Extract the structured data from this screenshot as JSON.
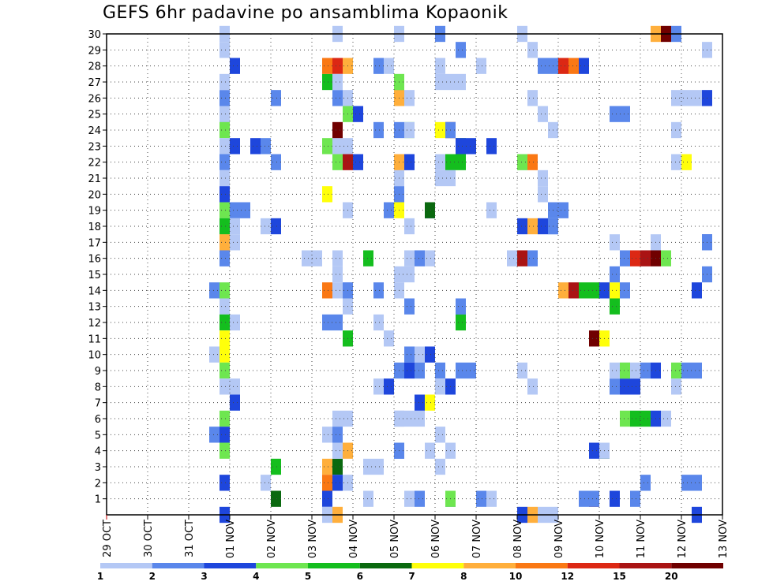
{
  "chart_data": {
    "type": "heatmap",
    "title": "GEFS 6hr padavine po ansamblima Kopaonik",
    "x_ticks": [
      "29 OCT",
      "30 OCT",
      "31 OCT",
      "01 NOV",
      "02 NOV",
      "03 NOV",
      "04 NOV",
      "05 NOV",
      "06 NOV",
      "07 NOV",
      "08 NOV",
      "09 NOV",
      "10 NOV",
      "11 NOV",
      "12 NOV",
      "13 NOV"
    ],
    "y_ticks": [
      "1",
      "2",
      "3",
      "4",
      "5",
      "6",
      "7",
      "8",
      "9",
      "10",
      "11",
      "12",
      "13",
      "14",
      "15",
      "16",
      "17",
      "18",
      "19",
      "20",
      "21",
      "22",
      "23",
      "24",
      "25",
      "26",
      "27",
      "28",
      "29",
      "30"
    ],
    "ylim": [
      0,
      30
    ],
    "grid": true,
    "colorbar": {
      "labels": [
        "1",
        "2",
        "3",
        "4",
        "5",
        "6",
        "7",
        "8",
        "10",
        "12",
        "15",
        "20"
      ],
      "colors": [
        "#b4c8f5",
        "#5a87eb",
        "#1e46dc",
        "#6ee650",
        "#14be1e",
        "#0a690f",
        "#ffff0a",
        "#ffaf3c",
        "#fa7814",
        "#dc2814",
        "#aa1414",
        "#700000"
      ]
    },
    "cells": [
      [
        11,
        1,
        30
      ],
      [
        11,
        1,
        29
      ],
      [
        11,
        2,
        26
      ],
      [
        11,
        2,
        25
      ],
      [
        11,
        1,
        25
      ],
      [
        11,
        1,
        27
      ],
      [
        11,
        4,
        24
      ],
      [
        11,
        1,
        23
      ],
      [
        11,
        2,
        22
      ],
      [
        11,
        1,
        21
      ],
      [
        11,
        3,
        20
      ],
      [
        11,
        1,
        19
      ],
      [
        11,
        4,
        19
      ],
      [
        11,
        5,
        18
      ],
      [
        11,
        5,
        17
      ],
      [
        11,
        8,
        17
      ],
      [
        11,
        1,
        16
      ],
      [
        11,
        2,
        16
      ],
      [
        11,
        4,
        14
      ],
      [
        11,
        1,
        13
      ],
      [
        11,
        1,
        12
      ],
      [
        11,
        5,
        12
      ],
      [
        11,
        1,
        11
      ],
      [
        11,
        7,
        11
      ],
      [
        11,
        7,
        10
      ],
      [
        11,
        4,
        9
      ],
      [
        11,
        1,
        8
      ],
      [
        11,
        4,
        6
      ],
      [
        11,
        3,
        5
      ],
      [
        11,
        4,
        4
      ],
      [
        11,
        3,
        2
      ],
      [
        11,
        3,
        0
      ],
      [
        10,
        2,
        14
      ],
      [
        10,
        1,
        10
      ],
      [
        10,
        2,
        5
      ],
      [
        12,
        3,
        28
      ],
      [
        12,
        3,
        23
      ],
      [
        12,
        2,
        19
      ],
      [
        12,
        1,
        18
      ],
      [
        12,
        1,
        17
      ],
      [
        12,
        1,
        12
      ],
      [
        12,
        1,
        8
      ],
      [
        12,
        3,
        7
      ],
      [
        13,
        2,
        19
      ],
      [
        14,
        3,
        23
      ],
      [
        15,
        2,
        23
      ],
      [
        15,
        1,
        18
      ],
      [
        16,
        3,
        18
      ],
      [
        16,
        2,
        22
      ],
      [
        16,
        2,
        26
      ],
      [
        16,
        5,
        3
      ],
      [
        16,
        6,
        1
      ],
      [
        15,
        1,
        2
      ],
      [
        19,
        1,
        16
      ],
      [
        20,
        1,
        16
      ],
      [
        21,
        3,
        1
      ],
      [
        21,
        8,
        3
      ],
      [
        21,
        9,
        2
      ],
      [
        22,
        6,
        3
      ],
      [
        22,
        3,
        2
      ],
      [
        22,
        8,
        0
      ],
      [
        21,
        1,
        0
      ],
      [
        21,
        5,
        27
      ],
      [
        21,
        9,
        28
      ],
      [
        22,
        10,
        28
      ],
      [
        23,
        8,
        28
      ],
      [
        22,
        4,
        22
      ],
      [
        23,
        11,
        22
      ],
      [
        24,
        3,
        22
      ],
      [
        23,
        4,
        25
      ],
      [
        24,
        3,
        25
      ],
      [
        22,
        2,
        26
      ],
      [
        23,
        1,
        26
      ],
      [
        21,
        4,
        23
      ],
      [
        22,
        1,
        23
      ],
      [
        23,
        1,
        23
      ],
      [
        22,
        12,
        24
      ],
      [
        22,
        1,
        27
      ],
      [
        22,
        1,
        16
      ],
      [
        22,
        1,
        15
      ],
      [
        21,
        9,
        14
      ],
      [
        22,
        1,
        14
      ],
      [
        23,
        1,
        14
      ],
      [
        23,
        2,
        14
      ],
      [
        23,
        1,
        13
      ],
      [
        22,
        2,
        12
      ],
      [
        21,
        2,
        12
      ],
      [
        23,
        5,
        11
      ],
      [
        22,
        1,
        6
      ],
      [
        23,
        1,
        6
      ],
      [
        21,
        7,
        20
      ],
      [
        23,
        1,
        19
      ],
      [
        21,
        1,
        5
      ],
      [
        22,
        2,
        5
      ],
      [
        22,
        1,
        4
      ],
      [
        23,
        8,
        4
      ],
      [
        23,
        1,
        2
      ],
      [
        22,
        1,
        30
      ],
      [
        25,
        1,
        3
      ],
      [
        26,
        1,
        3
      ],
      [
        25,
        1,
        1
      ],
      [
        25,
        5,
        16
      ],
      [
        26,
        2,
        24
      ],
      [
        26,
        2,
        14
      ],
      [
        26,
        1,
        12
      ],
      [
        26,
        2,
        28
      ],
      [
        27,
        1,
        28
      ],
      [
        27,
        2,
        19
      ],
      [
        26,
        1,
        8
      ],
      [
        27,
        3,
        8
      ],
      [
        27,
        1,
        11
      ],
      [
        28,
        1,
        6
      ],
      [
        28,
        2,
        4
      ],
      [
        28,
        2,
        4
      ],
      [
        28,
        1,
        4
      ],
      [
        28,
        2,
        24
      ],
      [
        28,
        1,
        22
      ],
      [
        29,
        1,
        22
      ],
      [
        29,
        1,
        16
      ],
      [
        29,
        1,
        15
      ],
      [
        28,
        1,
        15
      ],
      [
        28,
        1,
        14
      ],
      [
        28,
        1,
        21
      ],
      [
        28,
        2,
        20
      ],
      [
        28,
        1,
        30
      ],
      [
        28,
        7,
        19
      ],
      [
        28,
        5,
        26
      ],
      [
        28,
        8,
        26
      ],
      [
        29,
        1,
        26
      ],
      [
        28,
        4,
        27
      ],
      [
        28,
        8,
        22
      ],
      [
        29,
        3,
        22
      ],
      [
        29,
        1,
        18
      ],
      [
        29,
        4,
        24
      ],
      [
        29,
        1,
        24
      ],
      [
        29,
        1,
        1
      ],
      [
        29,
        2,
        13
      ],
      [
        29,
        2,
        10
      ],
      [
        30,
        1,
        10
      ],
      [
        29,
        3,
        9
      ],
      [
        30,
        2,
        9
      ],
      [
        30,
        2,
        1
      ],
      [
        31,
        3,
        19
      ],
      [
        31,
        6,
        19
      ],
      [
        30,
        2,
        16
      ],
      [
        31,
        1,
        16
      ],
      [
        30,
        1,
        6
      ],
      [
        29,
        1,
        6
      ],
      [
        28,
        1,
        6
      ],
      [
        28,
        2,
        9
      ],
      [
        28,
        2,
        4
      ],
      [
        30,
        3,
        7
      ],
      [
        31,
        7,
        7
      ],
      [
        31,
        1,
        4
      ],
      [
        31,
        3,
        10
      ],
      [
        32,
        2,
        9
      ],
      [
        32,
        1,
        28
      ],
      [
        32,
        1,
        27
      ],
      [
        32,
        2,
        30
      ],
      [
        32,
        1,
        21
      ],
      [
        32,
        1,
        3
      ],
      [
        32,
        1,
        8
      ],
      [
        32,
        1,
        5
      ],
      [
        33,
        3,
        8
      ],
      [
        33,
        2,
        22
      ],
      [
        32,
        1,
        22
      ],
      [
        33,
        5,
        22
      ],
      [
        33,
        1,
        4
      ],
      [
        32,
        7,
        24
      ],
      [
        33,
        12,
        24
      ],
      [
        33,
        2,
        24
      ],
      [
        33,
        2,
        1
      ],
      [
        33,
        4,
        1
      ],
      [
        34,
        5,
        23
      ],
      [
        34,
        5,
        22
      ],
      [
        34,
        3,
        23
      ],
      [
        34,
        3,
        13
      ],
      [
        34,
        5,
        12
      ],
      [
        33,
        1,
        27
      ],
      [
        34,
        1,
        27
      ],
      [
        33,
        1,
        21
      ],
      [
        34,
        2,
        13
      ],
      [
        35,
        3,
        23
      ],
      [
        34,
        2,
        29
      ],
      [
        34,
        2,
        9
      ],
      [
        35,
        2,
        9
      ],
      [
        36,
        2,
        1
      ],
      [
        37,
        1,
        1
      ],
      [
        37,
        3,
        23
      ],
      [
        37,
        1,
        19
      ],
      [
        36,
        1,
        28
      ],
      [
        40,
        1,
        22
      ],
      [
        40,
        1,
        9
      ],
      [
        40,
        4,
        22
      ],
      [
        41,
        9,
        22
      ],
      [
        39,
        1,
        16
      ],
      [
        40,
        11,
        16
      ],
      [
        41,
        2,
        16
      ],
      [
        40,
        3,
        18
      ],
      [
        41,
        8,
        18
      ],
      [
        42,
        3,
        18
      ],
      [
        43,
        2,
        18
      ],
      [
        40,
        3,
        0
      ],
      [
        41,
        8,
        0
      ],
      [
        42,
        1,
        0
      ],
      [
        41,
        1,
        8
      ],
      [
        41,
        1,
        29
      ],
      [
        40,
        1,
        30
      ],
      [
        42,
        1,
        21
      ],
      [
        42,
        1,
        20
      ],
      [
        42,
        1,
        25
      ],
      [
        41,
        1,
        26
      ],
      [
        43,
        2,
        18
      ],
      [
        43,
        2,
        19
      ],
      [
        44,
        2,
        19
      ],
      [
        43,
        1,
        24
      ],
      [
        43,
        1,
        0
      ],
      [
        42,
        2,
        28
      ],
      [
        43,
        2,
        28
      ],
      [
        44,
        8,
        14
      ],
      [
        45,
        11,
        14
      ],
      [
        46,
        5,
        14
      ],
      [
        47,
        5,
        14
      ],
      [
        48,
        3,
        14
      ],
      [
        49,
        7,
        14
      ],
      [
        50,
        2,
        14
      ],
      [
        49,
        2,
        15
      ],
      [
        44,
        10,
        28
      ],
      [
        45,
        9,
        28
      ],
      [
        46,
        3,
        28
      ],
      [
        47,
        11,
        1
      ],
      [
        46,
        2,
        1
      ],
      [
        47,
        2,
        1
      ],
      [
        47,
        12,
        11
      ],
      [
        48,
        7,
        11
      ],
      [
        47,
        3,
        4
      ],
      [
        48,
        6,
        4
      ],
      [
        48,
        1,
        4
      ],
      [
        49,
        5,
        13
      ],
      [
        49,
        3,
        1
      ],
      [
        49,
        2,
        25
      ],
      [
        50,
        2,
        25
      ],
      [
        50,
        5,
        8
      ],
      [
        50,
        3,
        8
      ],
      [
        51,
        3,
        8
      ],
      [
        49,
        2,
        8
      ],
      [
        50,
        1,
        9
      ],
      [
        49,
        1,
        9
      ],
      [
        50,
        4,
        9
      ],
      [
        51,
        1,
        9
      ],
      [
        50,
        4,
        6
      ],
      [
        51,
        5,
        6
      ],
      [
        52,
        5,
        6
      ],
      [
        53,
        3,
        6
      ],
      [
        54,
        1,
        6
      ],
      [
        49,
        1,
        17
      ],
      [
        50,
        2,
        16
      ],
      [
        51,
        10,
        16
      ],
      [
        52,
        11,
        16
      ],
      [
        53,
        12,
        16
      ],
      [
        54,
        4,
        16
      ],
      [
        53,
        8,
        30
      ],
      [
        54,
        12,
        30
      ],
      [
        55,
        2,
        30
      ],
      [
        52,
        2,
        9
      ],
      [
        53,
        3,
        9
      ],
      [
        55,
        4,
        9
      ],
      [
        56,
        2,
        9
      ],
      [
        57,
        2,
        9
      ],
      [
        55,
        1,
        8
      ],
      [
        53,
        1,
        17
      ],
      [
        58,
        3,
        17
      ],
      [
        58,
        2,
        17
      ],
      [
        55,
        1,
        22
      ],
      [
        56,
        7,
        22
      ],
      [
        55,
        1,
        24
      ],
      [
        55,
        1,
        26
      ],
      [
        56,
        1,
        26
      ],
      [
        57,
        1,
        26
      ],
      [
        58,
        3,
        26
      ],
      [
        58,
        1,
        29
      ],
      [
        58,
        2,
        15
      ],
      [
        57,
        3,
        14
      ],
      [
        52,
        2,
        2
      ],
      [
        51,
        2,
        1
      ],
      [
        56,
        2,
        2
      ],
      [
        57,
        2,
        2
      ],
      [
        57,
        3,
        0
      ]
    ]
  }
}
